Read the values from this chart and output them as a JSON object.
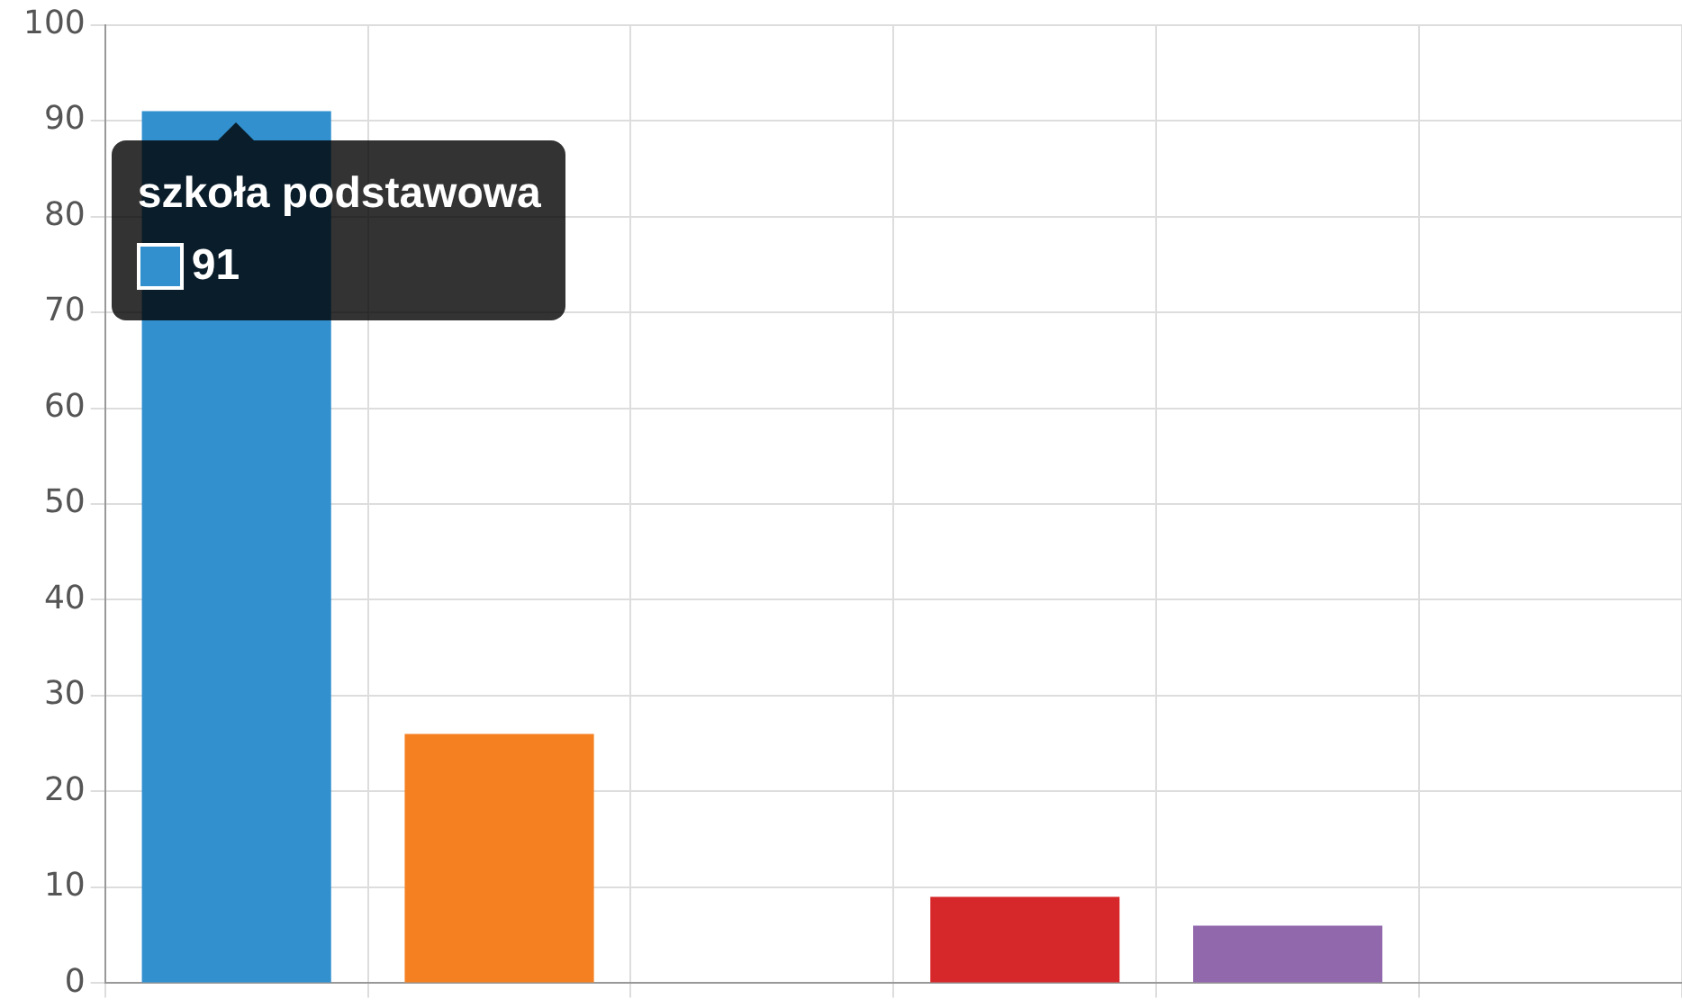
{
  "chart_data": {
    "type": "bar",
    "categories": [
      null,
      null,
      null,
      null,
      null,
      null
    ],
    "values": [
      91,
      26,
      0,
      9,
      6,
      0
    ],
    "colors": [
      "#3290cf",
      "#f58022",
      "#2ca02c",
      "#d6282a",
      "#9268ad",
      "#8c564b"
    ],
    "value_labels": [
      "91",
      null,
      null,
      null,
      null,
      null
    ],
    "annotations": [
      "szkoła podstawowa"
    ],
    "ylim": [
      0,
      100
    ],
    "yticks": [
      0,
      10,
      20,
      30,
      40,
      50,
      60,
      70,
      80,
      90,
      100
    ],
    "grid": true,
    "tick_labels": "y"
  }
}
